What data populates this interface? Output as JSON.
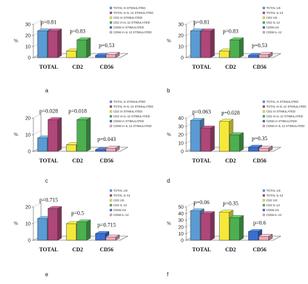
{
  "figure_title": "",
  "colors": {
    "blue": "#5b9bd5",
    "magenta": "#b0467a",
    "yellow": "#f4e93a",
    "green": "#4caf50",
    "cyan": "#3a6fd1",
    "pink": "#f0a8b8"
  },
  "chart_data": [
    {
      "type": "bar",
      "panel_label": "a",
      "categories": [
        "TOTAL",
        "CD2",
        "CD56"
      ],
      "ylabel": "%",
      "yticks": [
        "0",
        "10",
        "20",
        "30"
      ],
      "ylim": [
        0,
        30
      ],
      "p_values": [
        "p=0.81",
        "p=0.83",
        "p=0.53"
      ],
      "legend": [
        "TOTAL IA STIMULATED",
        "TOTAL IA-IL 12 STIMULATED",
        "CD2 IA STIMULATED",
        "CD2 IA-IL 12 STIMULATED",
        "CD56 IA STIMULATED",
        "CD56 IA-IL 12 STIMULATED"
      ],
      "series": [
        {
          "values": [
            24,
            6,
            2
          ]
        },
        {
          "values": [
            24,
            16,
            3
          ]
        }
      ]
    },
    {
      "type": "bar",
      "panel_label": "b",
      "categories": [
        "TOTAL",
        "CD2",
        "CD56"
      ],
      "ylabel": "%",
      "yticks": [
        "0",
        "10",
        "20",
        "30"
      ],
      "ylim": [
        0,
        30
      ],
      "p_values": [
        "p=0.81",
        "p=0.83",
        "p=0.53"
      ],
      "legend": [
        "TOTAL US",
        "TOTAL IL-12",
        "CD2 US",
        "CD2 IL-12",
        "CD56 US",
        "CD56 IL-12"
      ],
      "series": [
        {
          "values": [
            24,
            6,
            2
          ]
        },
        {
          "values": [
            24,
            16,
            3
          ]
        }
      ]
    },
    {
      "type": "bar",
      "panel_label": "c",
      "categories": [
        "TOTAL",
        "CD2",
        "CD56"
      ],
      "ylabel": "%",
      "yticks": [
        "0",
        "10",
        "20"
      ],
      "ylim": [
        0,
        20
      ],
      "p_values": [
        "p=0.028",
        "p=0.018",
        "p=0.043"
      ],
      "legend": [
        "TOTAL IA STIMULATED",
        "TOTAL IA-IL 12 STIMULATED",
        "CD2 IA STIMULATED",
        "CD2 IA-IL 12 STIMULATED",
        "CD56 IA STIMULATED",
        "CD56 IA-IL 12 STIMULATED"
      ],
      "series": [
        {
          "values": [
            8,
            4,
            1
          ]
        },
        {
          "values": [
            19,
            19,
            2
          ]
        }
      ]
    },
    {
      "type": "bar",
      "panel_label": "d",
      "categories": [
        "TOTAL",
        "CD2",
        "CD56"
      ],
      "ylabel": "%",
      "yticks": [
        "0",
        "10",
        "20",
        "30",
        "40"
      ],
      "ylim": [
        0,
        40
      ],
      "p_values": [
        "p=0.063",
        "p=0.028",
        "p=0.35"
      ],
      "legend": [
        "TOTAL IA STIMULATED",
        "TOTAL IA-IL 12 STIMULATED",
        "CD2 IA STIMULATED",
        "CD2 IA-IL 12 STIMULATED",
        "CD56 IA STIMULATED",
        "CD56 IA-IL 12 STIMULATED"
      ],
      "series": [
        {
          "values": [
            37,
            36,
            5
          ]
        },
        {
          "values": [
            28,
            20,
            4
          ]
        }
      ]
    },
    {
      "type": "bar",
      "panel_label": "e",
      "categories": [
        "TOTAL",
        "CD2",
        "CD56"
      ],
      "ylabel": "%",
      "yticks": [
        "0",
        "10",
        "20"
      ],
      "ylim": [
        0,
        20
      ],
      "p_values": [
        "p=0.715",
        "p=0.5",
        "p=0.715"
      ],
      "legend": [
        "TOTAL US",
        "TOTAL IL-12",
        "CD2 US",
        "CD2 IL-12",
        "CD56 US",
        "CD56 IL-12"
      ],
      "series": [
        {
          "values": [
            13,
            10,
            4
          ]
        },
        {
          "values": [
            19,
            11,
            2
          ]
        }
      ]
    },
    {
      "type": "bar",
      "panel_label": "f",
      "categories": [
        "TOTAL",
        "CD2",
        "CD56"
      ],
      "ylabel": "%",
      "yticks": [
        "0",
        "10",
        "20",
        "30",
        "40",
        "50"
      ],
      "ylim": [
        0,
        50
      ],
      "p_values": [
        "p=0.06",
        "p=0.35",
        "p=0.6"
      ],
      "legend": [
        "TOTAL US",
        "TOTAL IL-12",
        "CD2 US",
        "CD2 IL-12",
        "CD56 US",
        "CD56 IL-12"
      ],
      "series": [
        {
          "values": [
            44,
            42,
            13
          ]
        },
        {
          "values": [
            40,
            34,
            6
          ]
        }
      ]
    }
  ]
}
